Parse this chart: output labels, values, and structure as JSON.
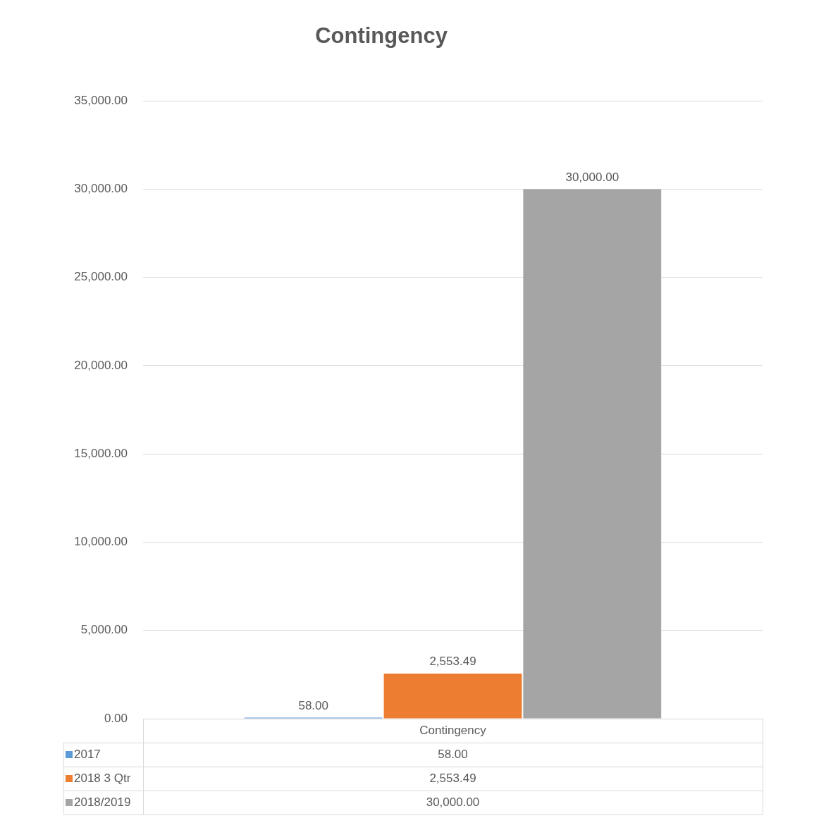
{
  "chart_data": {
    "type": "bar",
    "title": "Contingency",
    "categories": [
      "Contingency"
    ],
    "series": [
      {
        "name": "2017",
        "color": "#5b9bd5",
        "values": [
          58
        ],
        "value_labels": [
          "58.00"
        ]
      },
      {
        "name": "2018 3 Qtr",
        "color": "#ed7d31",
        "values": [
          2553.49
        ],
        "value_labels": [
          "2,553.49"
        ]
      },
      {
        "name": "2018/2019",
        "color": "#a5a5a5",
        "values": [
          30000
        ],
        "value_labels": [
          "30,000.00"
        ]
      }
    ],
    "ylim": [
      0,
      35000
    ],
    "yticks": [
      {
        "value": 0,
        "label": "0.00"
      },
      {
        "value": 5000,
        "label": "5,000.00"
      },
      {
        "value": 10000,
        "label": "10,000.00"
      },
      {
        "value": 15000,
        "label": "15,000.00"
      },
      {
        "value": 20000,
        "label": "20,000.00"
      },
      {
        "value": 25000,
        "label": "25,000.00"
      },
      {
        "value": 30000,
        "label": "30,000.00"
      },
      {
        "value": 35000,
        "label": "35,000.00"
      }
    ],
    "grid": "y",
    "legend": "bottom"
  }
}
